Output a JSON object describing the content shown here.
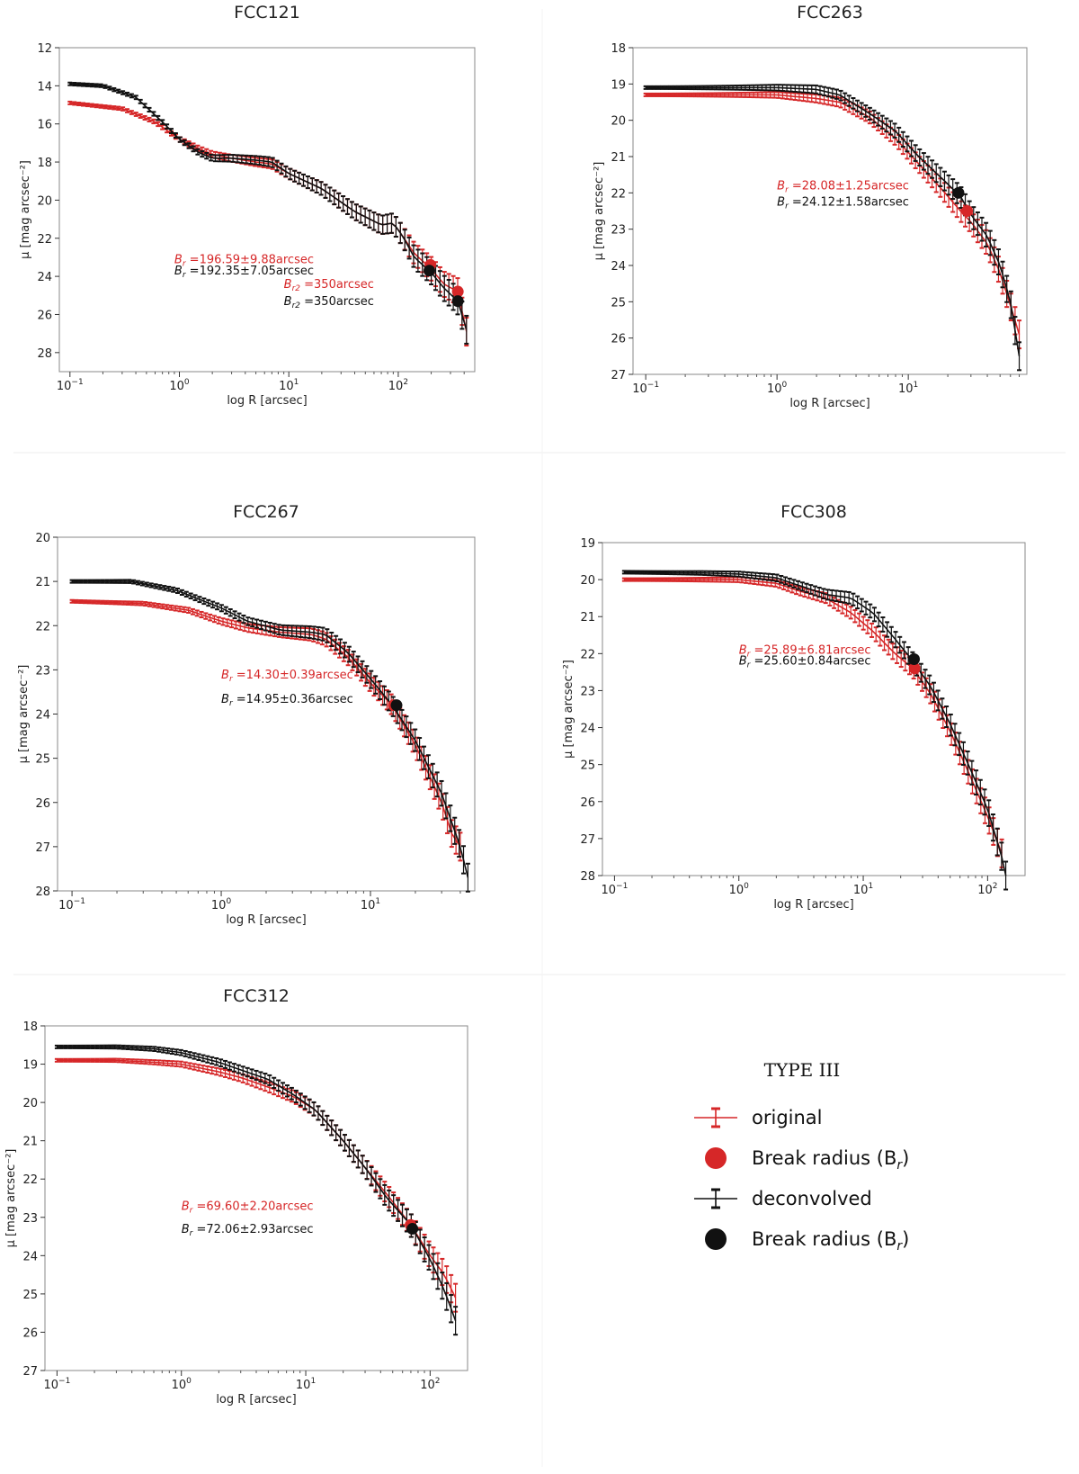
{
  "figure": {
    "separator_color": "#eeeeee"
  },
  "colors": {
    "original": "#d62728",
    "deconvolved": "#111111",
    "annotation_red": "#d62728",
    "annotation_black": "#111111"
  },
  "legend": {
    "title": "TYPE III",
    "entries": [
      {
        "label": "original",
        "style": "errorbar",
        "color": "#d62728"
      },
      {
        "label": "Break radius (B",
        "sub": "r",
        "tail": ")",
        "style": "dot",
        "color": "#d62728"
      },
      {
        "label": "deconvolved",
        "style": "errorbar",
        "color": "#111111"
      },
      {
        "label": "Break radius (B",
        "sub": "r",
        "tail": ")",
        "style": "dot",
        "color": "#111111"
      }
    ]
  },
  "chart_data": [
    {
      "type": "line",
      "title": "FCC121",
      "xlabel": "log R [arcsec]",
      "ylabel": "μ [mag arcsec⁻²]",
      "xscale": "log",
      "xlim": [
        0.08,
        500
      ],
      "ylim": [
        12,
        29
      ],
      "xticks": [
        0.1,
        1,
        10,
        100
      ],
      "xtick_labels": [
        {
          "base": "10",
          "exp": "−1"
        },
        {
          "base": "10",
          "exp": "0"
        },
        {
          "base": "10",
          "exp": "1"
        },
        {
          "base": "10",
          "exp": "2"
        }
      ],
      "yticks": [
        12,
        14,
        16,
        18,
        20,
        22,
        24,
        26,
        28
      ],
      "series": [
        {
          "name": "original",
          "color": "#d62728",
          "x": [
            0.1,
            0.3,
            0.6,
            1,
            1.5,
            2,
            3,
            5,
            7,
            10,
            20,
            40,
            70,
            90,
            110,
            140,
            200,
            260,
            350,
            420
          ],
          "y": [
            14.9,
            15.2,
            15.9,
            16.8,
            17.3,
            17.6,
            17.8,
            18.0,
            18.1,
            18.6,
            19.4,
            20.6,
            21.3,
            21.2,
            21.9,
            22.8,
            23.6,
            24.4,
            24.8,
            26.9
          ]
        },
        {
          "name": "deconvolved",
          "color": "#111111",
          "x": [
            0.1,
            0.2,
            0.4,
            0.7,
            1,
            1.5,
            2,
            3,
            5,
            7,
            10,
            20,
            40,
            70,
            90,
            110,
            140,
            200,
            260,
            350,
            420
          ],
          "y": [
            13.9,
            14.0,
            14.6,
            15.9,
            16.8,
            17.5,
            17.8,
            17.8,
            17.9,
            18.0,
            18.6,
            19.4,
            20.6,
            21.3,
            21.2,
            21.9,
            23.0,
            23.8,
            24.6,
            25.3,
            26.8
          ]
        }
      ],
      "break_points": [
        {
          "x": 196.59,
          "y": 23.4,
          "color": "#d62728"
        },
        {
          "x": 192.35,
          "y": 23.7,
          "color": "#111111"
        },
        {
          "x": 350,
          "y": 24.8,
          "color": "#d62728"
        },
        {
          "x": 350,
          "y": 25.3,
          "color": "#111111"
        }
      ],
      "annotations": [
        {
          "prefix": "B",
          "sub": "r",
          "text": " =196.59±9.88arcsec",
          "color": "#d62728",
          "at": [
            0.9,
            23.3
          ]
        },
        {
          "prefix": "B",
          "sub": "r",
          "text": " =192.35±7.05arcsec",
          "color": "#111111",
          "at": [
            0.9,
            23.9
          ]
        },
        {
          "prefix": "B",
          "sub": "r2",
          "text": " =350arcsec",
          "color": "#d62728",
          "at": [
            9,
            24.6
          ]
        },
        {
          "prefix": "B",
          "sub": "r2",
          "text": " =350arcsec",
          "color": "#111111",
          "at": [
            9,
            25.5
          ]
        }
      ]
    },
    {
      "type": "line",
      "title": "FCC263",
      "xlabel": "log R [arcsec]",
      "ylabel": "μ [mag arcsec⁻²]",
      "xscale": "log",
      "xlim": [
        0.08,
        80
      ],
      "ylim": [
        18,
        27
      ],
      "xticks": [
        0.1,
        1,
        10
      ],
      "xtick_labels": [
        {
          "base": "10",
          "exp": "−1"
        },
        {
          "base": "10",
          "exp": "0"
        },
        {
          "base": "10",
          "exp": "1"
        }
      ],
      "yticks": [
        18,
        19,
        20,
        21,
        22,
        23,
        24,
        25,
        26,
        27
      ],
      "series": [
        {
          "name": "original",
          "color": "#d62728",
          "x": [
            0.1,
            0.5,
            1,
            2,
            3,
            5,
            8,
            12,
            18,
            25,
            30,
            40,
            50,
            60,
            70
          ],
          "y": [
            19.3,
            19.3,
            19.3,
            19.4,
            19.5,
            19.9,
            20.5,
            21.2,
            21.9,
            22.5,
            22.8,
            23.4,
            24.2,
            25.1,
            25.9
          ]
        },
        {
          "name": "deconvolved",
          "color": "#111111",
          "x": [
            0.1,
            0.5,
            1,
            2,
            3,
            5,
            8,
            12,
            18,
            25,
            30,
            40,
            50,
            60,
            70
          ],
          "y": [
            19.1,
            19.1,
            19.1,
            19.15,
            19.3,
            19.8,
            20.3,
            21.0,
            21.6,
            22.1,
            22.6,
            23.2,
            24.0,
            25.0,
            26.5
          ]
        }
      ],
      "break_points": [
        {
          "x": 28.08,
          "y": 22.5,
          "color": "#d62728"
        },
        {
          "x": 24.12,
          "y": 22.0,
          "color": "#111111"
        }
      ],
      "annotations": [
        {
          "prefix": "B",
          "sub": "r",
          "text": " =28.08±1.25arcsec",
          "color": "#d62728",
          "at": [
            1.0,
            21.9
          ]
        },
        {
          "prefix": "B",
          "sub": "r",
          "text": " =24.12±1.58arcsec",
          "color": "#111111",
          "at": [
            1.0,
            22.35
          ]
        }
      ]
    },
    {
      "type": "line",
      "title": "FCC267",
      "xlabel": "log R [arcsec]",
      "ylabel": "μ [mag arcsec⁻²]",
      "xscale": "log",
      "xlim": [
        0.08,
        50
      ],
      "ylim": [
        20,
        28
      ],
      "xticks": [
        0.1,
        1,
        10
      ],
      "xtick_labels": [
        {
          "base": "10",
          "exp": "−1"
        },
        {
          "base": "10",
          "exp": "0"
        },
        {
          "base": "10",
          "exp": "1"
        }
      ],
      "yticks": [
        20,
        21,
        22,
        23,
        24,
        25,
        26,
        27,
        28
      ],
      "series": [
        {
          "name": "original",
          "color": "#d62728",
          "x": [
            0.1,
            0.3,
            0.6,
            1,
            1.5,
            2.5,
            4,
            5,
            7,
            10,
            14,
            20,
            30,
            35,
            40
          ],
          "y": [
            21.45,
            21.5,
            21.65,
            21.9,
            22.05,
            22.15,
            22.2,
            22.3,
            22.7,
            23.3,
            23.8,
            24.7,
            26.0,
            26.7,
            27.0
          ]
        },
        {
          "name": "deconvolved",
          "color": "#111111",
          "x": [
            0.1,
            0.25,
            0.5,
            1,
            1.5,
            2.5,
            4,
            5,
            7,
            10,
            14,
            20,
            30,
            40,
            45
          ],
          "y": [
            21.0,
            21.0,
            21.2,
            21.6,
            21.9,
            22.1,
            22.15,
            22.2,
            22.6,
            23.2,
            23.8,
            24.6,
            25.8,
            27.0,
            27.7
          ]
        }
      ],
      "break_points": [
        {
          "x": 14.3,
          "y": 23.8,
          "color": "#d62728"
        },
        {
          "x": 14.95,
          "y": 23.8,
          "color": "#111111"
        }
      ],
      "annotations": [
        {
          "prefix": "B",
          "sub": "r",
          "text": " =14.30±0.39arcsec",
          "color": "#d62728",
          "at": [
            1.0,
            23.2
          ]
        },
        {
          "prefix": "B",
          "sub": "r",
          "text": " =14.95±0.36arcsec",
          "color": "#111111",
          "at": [
            1.0,
            23.75
          ]
        }
      ]
    },
    {
      "type": "line",
      "title": "FCC308",
      "xlabel": "log R [arcsec]",
      "ylabel": "μ [mag arcsec⁻²]",
      "xscale": "log",
      "xlim": [
        0.08,
        200
      ],
      "ylim": [
        19,
        28
      ],
      "xticks": [
        0.1,
        1,
        10,
        100
      ],
      "xtick_labels": [
        {
          "base": "10",
          "exp": "−1"
        },
        {
          "base": "10",
          "exp": "0"
        },
        {
          "base": "10",
          "exp": "1"
        },
        {
          "base": "10",
          "exp": "2"
        }
      ],
      "yticks": [
        19,
        20,
        21,
        22,
        23,
        24,
        25,
        26,
        27,
        28
      ],
      "series": [
        {
          "name": "original",
          "color": "#d62728",
          "x": [
            0.12,
            0.5,
            1,
            2,
            3,
            5,
            8,
            12,
            18,
            25,
            35,
            50,
            70,
            100,
            130
          ],
          "y": [
            20.0,
            20.0,
            20.0,
            20.1,
            20.3,
            20.5,
            20.9,
            21.4,
            22.0,
            22.4,
            23.1,
            24.1,
            25.2,
            26.4,
            27.4
          ]
        },
        {
          "name": "deconvolved",
          "color": "#111111",
          "x": [
            0.12,
            0.5,
            1,
            2,
            3,
            5,
            8,
            12,
            18,
            25,
            35,
            50,
            70,
            100,
            130,
            140
          ],
          "y": [
            19.8,
            19.82,
            19.85,
            19.95,
            20.15,
            20.4,
            20.5,
            20.9,
            21.6,
            22.2,
            22.9,
            23.9,
            25.0,
            26.2,
            27.5,
            28.0
          ]
        }
      ],
      "break_points": [
        {
          "x": 25.89,
          "y": 22.4,
          "color": "#d62728"
        },
        {
          "x": 25.6,
          "y": 22.15,
          "color": "#111111"
        }
      ],
      "annotations": [
        {
          "prefix": "B",
          "sub": "r",
          "text": " =25.89±6.81arcsec",
          "color": "#d62728",
          "at": [
            1.0,
            22.0
          ]
        },
        {
          "prefix": "B",
          "sub": "r",
          "text": " =25.60±0.84arcsec",
          "color": "#111111",
          "at": [
            1.0,
            22.3
          ]
        }
      ]
    },
    {
      "type": "line",
      "title": "FCC312",
      "xlabel": "log R [arcsec]",
      "ylabel": "μ [mag arcsec⁻²]",
      "xscale": "log",
      "xlim": [
        0.08,
        200
      ],
      "ylim": [
        18,
        27
      ],
      "xticks": [
        0.1,
        1,
        10,
        100
      ],
      "xtick_labels": [
        {
          "base": "10",
          "exp": "−1"
        },
        {
          "base": "10",
          "exp": "0"
        },
        {
          "base": "10",
          "exp": "1"
        },
        {
          "base": "10",
          "exp": "2"
        }
      ],
      "yticks": [
        18,
        19,
        20,
        21,
        22,
        23,
        24,
        25,
        26,
        27
      ],
      "series": [
        {
          "name": "original",
          "color": "#d62728",
          "x": [
            0.1,
            0.3,
            0.6,
            1,
            2,
            3,
            5,
            8,
            12,
            20,
            30,
            45,
            70,
            100,
            130,
            160
          ],
          "y": [
            18.9,
            18.9,
            18.95,
            19.0,
            19.2,
            19.35,
            19.6,
            19.85,
            20.2,
            21.0,
            21.7,
            22.4,
            23.2,
            24.0,
            24.5,
            25.1
          ]
        },
        {
          "name": "deconvolved",
          "color": "#111111",
          "x": [
            0.1,
            0.3,
            0.6,
            1,
            2,
            3,
            5,
            8,
            12,
            20,
            30,
            45,
            70,
            100,
            130,
            160
          ],
          "y": [
            18.55,
            18.55,
            18.6,
            18.7,
            18.95,
            19.15,
            19.4,
            19.8,
            20.2,
            21.0,
            21.7,
            22.5,
            23.2,
            24.1,
            24.9,
            25.7
          ]
        }
      ],
      "break_points": [
        {
          "x": 69.6,
          "y": 23.2,
          "color": "#d62728"
        },
        {
          "x": 72.06,
          "y": 23.3,
          "color": "#111111"
        }
      ],
      "annotations": [
        {
          "prefix": "B",
          "sub": "r",
          "text": " =69.60±2.20arcsec",
          "color": "#d62728",
          "at": [
            1.0,
            22.8
          ]
        },
        {
          "prefix": "B",
          "sub": "r",
          "text": " =72.06±2.93arcsec",
          "color": "#111111",
          "at": [
            1.0,
            23.4
          ]
        }
      ]
    }
  ]
}
